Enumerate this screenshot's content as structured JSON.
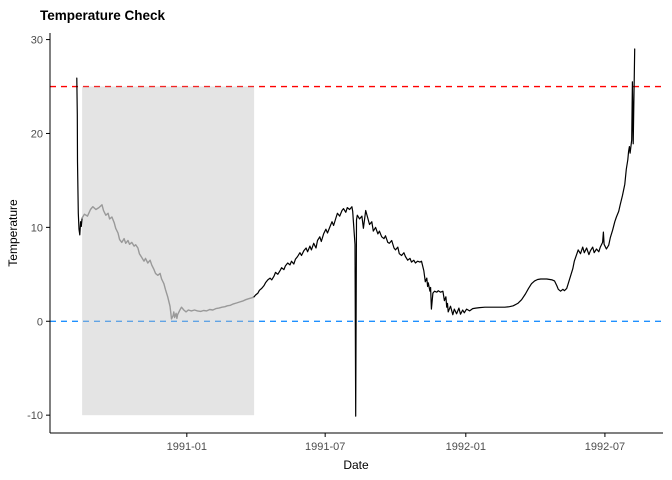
{
  "title": "Temperature Check",
  "axes": {
    "x_label": "Date",
    "y_label": "Temperature"
  },
  "colors": {
    "background": "#ffffff",
    "axis_line": "#000000",
    "tick_text": "#4d4d4d",
    "upper_threshold_line": "#ff0000",
    "zero_reference_line": "#1e90ff",
    "highlight_region_fill": "#bfbfbf",
    "highlighted_series": "#999999",
    "main_series": "#000000"
  },
  "chart_data": {
    "type": "line",
    "title": "Temperature Check",
    "xlabel": "Date",
    "ylabel": "Temperature",
    "grid": false,
    "legend": false,
    "x_unit": "days since 1990-08-01",
    "x_domain": [
      -26,
      776
    ],
    "y_domain": [
      -11.9,
      30.7
    ],
    "x_ticks": [
      {
        "day": 153,
        "label": "1991-01"
      },
      {
        "day": 334,
        "label": "1991-07"
      },
      {
        "day": 518,
        "label": "1992-01"
      },
      {
        "day": 700,
        "label": "1992-07"
      }
    ],
    "y_ticks": [
      -10,
      0,
      10,
      20,
      30
    ],
    "reference_lines": [
      {
        "name": "upper-threshold-line",
        "axis": "y",
        "value": 25,
        "color": "#ff0000",
        "style": "dashed"
      },
      {
        "name": "zero-reference-line",
        "axis": "y",
        "value": 0,
        "color": "#1e90ff",
        "style": "dashed"
      }
    ],
    "highlight_region": {
      "x_start_day": 16,
      "x_end_day": 241,
      "y_min": -10,
      "y_max": 25,
      "fill": "#bfbfbf",
      "opacity": 0.42
    },
    "series": [
      {
        "name": "temperature-initial-segment",
        "color": "#000000",
        "width": 1.2,
        "points": [
          [
            9,
            25.9
          ],
          [
            9.7,
            22.0
          ],
          [
            10,
            17.0
          ],
          [
            10.6,
            13.5
          ],
          [
            11,
            11.5
          ],
          [
            12,
            9.8
          ],
          [
            13,
            9.2
          ],
          [
            14,
            10.6
          ],
          [
            15,
            10.1
          ],
          [
            16,
            11.0
          ]
        ]
      },
      {
        "name": "temperature-highlighted-segment",
        "color": "#999999",
        "width": 1.4,
        "points": [
          [
            16,
            11.0
          ],
          [
            19,
            11.4
          ],
          [
            23,
            11.2
          ],
          [
            27,
            11.9
          ],
          [
            30,
            12.2
          ],
          [
            34,
            11.9
          ],
          [
            38,
            12.1
          ],
          [
            42,
            12.4
          ],
          [
            44,
            11.8
          ],
          [
            47,
            11.3
          ],
          [
            50,
            11.5
          ],
          [
            52,
            10.9
          ],
          [
            55,
            11.1
          ],
          [
            58,
            10.5
          ],
          [
            60,
            9.9
          ],
          [
            63,
            9.4
          ],
          [
            65,
            8.7
          ],
          [
            68,
            8.4
          ],
          [
            71,
            8.8
          ],
          [
            73,
            8.3
          ],
          [
            76,
            8.6
          ],
          [
            78,
            8.2
          ],
          [
            81,
            8.4
          ],
          [
            84,
            8.0
          ],
          [
            86,
            8.15
          ],
          [
            89,
            7.8
          ],
          [
            91,
            7.2
          ],
          [
            94,
            6.8
          ],
          [
            97,
            6.4
          ],
          [
            99,
            6.7
          ],
          [
            102,
            6.2
          ],
          [
            105,
            6.5
          ],
          [
            107,
            6.0
          ],
          [
            110,
            5.5
          ],
          [
            112,
            5.1
          ],
          [
            115,
            4.9
          ],
          [
            118,
            5.1
          ],
          [
            120,
            4.5
          ],
          [
            123,
            4.0
          ],
          [
            125,
            3.4
          ],
          [
            128,
            2.6
          ],
          [
            131,
            1.6
          ],
          [
            132,
            0.9
          ],
          [
            133,
            0.25
          ],
          [
            135,
            0.6
          ],
          [
            136,
            1.0
          ],
          [
            137,
            0.4
          ],
          [
            139,
            0.85
          ],
          [
            140,
            0.3
          ],
          [
            141,
            0.7
          ],
          [
            144,
            1.2
          ],
          [
            146,
            1.5
          ],
          [
            149,
            1.2
          ],
          [
            152,
            1.0
          ],
          [
            155,
            1.2
          ],
          [
            159,
            1.1
          ],
          [
            163,
            1.2
          ],
          [
            167,
            1.1
          ],
          [
            171,
            1.05
          ],
          [
            175,
            1.15
          ],
          [
            179,
            1.1
          ],
          [
            183,
            1.25
          ],
          [
            187,
            1.2
          ],
          [
            191,
            1.35
          ],
          [
            195,
            1.4
          ],
          [
            199,
            1.5
          ],
          [
            203,
            1.55
          ],
          [
            206,
            1.65
          ],
          [
            210,
            1.7
          ],
          [
            214,
            1.85
          ],
          [
            218,
            1.95
          ],
          [
            222,
            2.05
          ],
          [
            226,
            2.15
          ],
          [
            230,
            2.3
          ],
          [
            234,
            2.4
          ],
          [
            238,
            2.5
          ],
          [
            241,
            2.6
          ]
        ]
      },
      {
        "name": "temperature-main-segment",
        "color": "#000000",
        "width": 1.2,
        "points": [
          [
            241,
            2.6
          ],
          [
            243,
            2.8
          ],
          [
            246,
            3.0
          ],
          [
            248,
            3.3
          ],
          [
            251,
            3.5
          ],
          [
            254,
            3.8
          ],
          [
            256,
            4.1
          ],
          [
            259,
            4.4
          ],
          [
            262,
            4.6
          ],
          [
            264,
            4.4
          ],
          [
            267,
            4.8
          ],
          [
            269,
            5.2
          ],
          [
            272,
            5.0
          ],
          [
            275,
            5.4
          ],
          [
            277,
            5.7
          ],
          [
            280,
            5.5
          ],
          [
            282,
            5.9
          ],
          [
            285,
            6.2
          ],
          [
            288,
            6.0
          ],
          [
            290,
            6.4
          ],
          [
            293,
            6.1
          ],
          [
            295,
            6.6
          ],
          [
            298,
            6.9
          ],
          [
            301,
            7.3
          ],
          [
            303,
            7.0
          ],
          [
            306,
            7.5
          ],
          [
            309,
            7.8
          ],
          [
            311,
            7.4
          ],
          [
            314,
            8.0
          ],
          [
            316,
            7.6
          ],
          [
            319,
            8.3
          ],
          [
            322,
            7.8
          ],
          [
            324,
            8.6
          ],
          [
            327,
            9.0
          ],
          [
            329,
            8.5
          ],
          [
            332,
            9.3
          ],
          [
            335,
            9.8
          ],
          [
            337,
            9.4
          ],
          [
            340,
            10.0
          ],
          [
            343,
            10.6
          ],
          [
            345,
            10.2
          ],
          [
            348,
            11.0
          ],
          [
            350,
            11.5
          ],
          [
            353,
            11.2
          ],
          [
            356,
            11.8
          ],
          [
            358,
            12.0
          ],
          [
            361,
            11.6
          ],
          [
            363,
            12.1
          ],
          [
            366,
            11.9
          ],
          [
            369,
            12.2
          ],
          [
            370,
            11.7
          ],
          [
            371,
            10.6
          ],
          [
            373,
            8.2
          ],
          [
            374,
            -10.1
          ],
          [
            375,
            10.8
          ],
          [
            376,
            11.3
          ],
          [
            379,
            10.9
          ],
          [
            382,
            11.2
          ],
          [
            384,
            9.9
          ],
          [
            387,
            11.8
          ],
          [
            390,
            10.9
          ],
          [
            392,
            10.3
          ],
          [
            395,
            10.6
          ],
          [
            397,
            9.6
          ],
          [
            400,
            10.0
          ],
          [
            403,
            9.3
          ],
          [
            405,
            9.6
          ],
          [
            408,
            9.0
          ],
          [
            411,
            8.8
          ],
          [
            413,
            9.1
          ],
          [
            416,
            8.4
          ],
          [
            418,
            8.3
          ],
          [
            421,
            8.6
          ],
          [
            424,
            7.8
          ],
          [
            426,
            7.6
          ],
          [
            429,
            7.9
          ],
          [
            431,
            7.2
          ],
          [
            434,
            7.0
          ],
          [
            437,
            7.3
          ],
          [
            439,
            6.9
          ],
          [
            442,
            6.5
          ],
          [
            445,
            6.7
          ],
          [
            447,
            6.3
          ],
          [
            450,
            6.5
          ],
          [
            452,
            6.2
          ],
          [
            455,
            6.4
          ],
          [
            458,
            6.3
          ],
          [
            460,
            6.4
          ],
          [
            463,
            5.4
          ],
          [
            465,
            4.2
          ],
          [
            467,
            4.6
          ],
          [
            468,
            3.7
          ],
          [
            469,
            4.1
          ],
          [
            471,
            3.2
          ],
          [
            472,
            3.6
          ],
          [
            473,
            1.3
          ],
          [
            475,
            3.0
          ],
          [
            477,
            3.2
          ],
          [
            480,
            3.1
          ],
          [
            482,
            3.25
          ],
          [
            485,
            3.1
          ],
          [
            488,
            3.2
          ],
          [
            490,
            2.2
          ],
          [
            492,
            2.6
          ],
          [
            493,
            1.5
          ],
          [
            494,
            1.9
          ],
          [
            495,
            1.0
          ],
          [
            498,
            1.6
          ],
          [
            501,
            0.7
          ],
          [
            503,
            1.3
          ],
          [
            506,
            0.8
          ],
          [
            509,
            1.4
          ],
          [
            511,
            0.75
          ],
          [
            514,
            1.2
          ],
          [
            516,
            0.9
          ],
          [
            519,
            1.3
          ],
          [
            523,
            1.1
          ],
          [
            527,
            1.35
          ],
          [
            531,
            1.4
          ],
          [
            536,
            1.45
          ],
          [
            543,
            1.5
          ],
          [
            549,
            1.5
          ],
          [
            556,
            1.5
          ],
          [
            562,
            1.5
          ],
          [
            569,
            1.5
          ],
          [
            575,
            1.55
          ],
          [
            580,
            1.65
          ],
          [
            586,
            1.9
          ],
          [
            591,
            2.3
          ],
          [
            596,
            2.9
          ],
          [
            600,
            3.5
          ],
          [
            604,
            4.0
          ],
          [
            608,
            4.3
          ],
          [
            612,
            4.45
          ],
          [
            616,
            4.5
          ],
          [
            620,
            4.5
          ],
          [
            624,
            4.5
          ],
          [
            628,
            4.45
          ],
          [
            631,
            4.4
          ],
          [
            634,
            4.3
          ],
          [
            637,
            3.8
          ],
          [
            639,
            3.4
          ],
          [
            642,
            3.2
          ],
          [
            645,
            3.4
          ],
          [
            647,
            3.25
          ],
          [
            650,
            3.5
          ],
          [
            652,
            4.0
          ],
          [
            655,
            4.8
          ],
          [
            658,
            5.6
          ],
          [
            660,
            6.4
          ],
          [
            663,
            7.1
          ],
          [
            665,
            7.6
          ],
          [
            668,
            7.2
          ],
          [
            671,
            7.9
          ],
          [
            673,
            7.3
          ],
          [
            676,
            7.8
          ],
          [
            679,
            7.1
          ],
          [
            681,
            7.5
          ],
          [
            684,
            7.9
          ],
          [
            686,
            7.3
          ],
          [
            689,
            7.7
          ],
          [
            692,
            7.4
          ],
          [
            694,
            7.9
          ],
          [
            697,
            8.4
          ],
          [
            698,
            9.5
          ],
          [
            699,
            8.2
          ],
          [
            702,
            7.7
          ],
          [
            705,
            8.1
          ],
          [
            707,
            8.9
          ],
          [
            710,
            9.7
          ],
          [
            713,
            10.6
          ],
          [
            715,
            11.1
          ],
          [
            718,
            11.7
          ],
          [
            720,
            12.4
          ],
          [
            723,
            13.4
          ],
          [
            726,
            14.6
          ],
          [
            728,
            16.2
          ],
          [
            730,
            17.2
          ],
          [
            731,
            18.1
          ],
          [
            732,
            18.6
          ],
          [
            733,
            17.9
          ],
          [
            735,
            19.3
          ],
          [
            736,
            25.5
          ],
          [
            737,
            18.9
          ],
          [
            739,
            29.0
          ]
        ]
      }
    ]
  }
}
